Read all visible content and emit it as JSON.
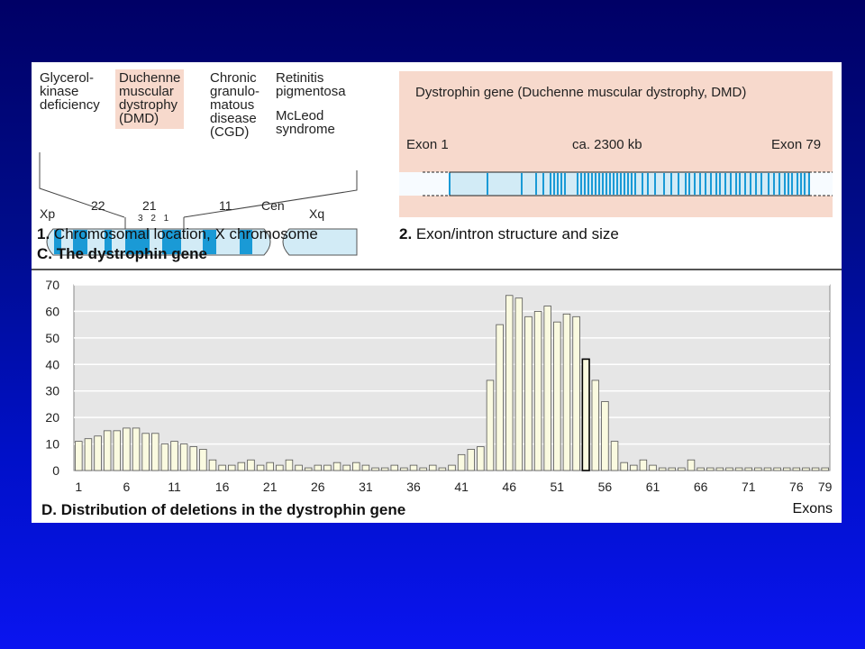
{
  "chromosome": {
    "regions": [
      "Glycerol-\nkinase\ndeficiency",
      "Duchenne\nmuscular\ndystrophy\n(DMD)",
      "Chronic\ngranulo-\nmatous\ndisease\n(CGD)",
      "Retinitis\npigmentosa",
      "McLeod\nsyndrome"
    ],
    "band_labels": [
      "Xp",
      "22",
      "21",
      "11",
      "Cen",
      "Xq"
    ],
    "sub_bands": "3 2 1",
    "panel_label_number": "1.",
    "panel_label_text": "Chromosomal location, X chromosome",
    "section_label_letter": "C.",
    "section_label_text": "The dystrophin gene"
  },
  "gene": {
    "title": "Dystrophin gene   (Duchenne muscular dystrophy, DMD)",
    "exon_start": "Exon 1",
    "size": "ca. 2300 kb",
    "exon_end": "Exon 79",
    "panel_label_number": "2.",
    "panel_label_text": "Exon/intron structure and size"
  },
  "colors": {
    "exon_blue": "#1a9ad6",
    "light_blue": "#d2ebf6",
    "peach": "#f7d9cc",
    "bar_fill": "#fafae0",
    "plot_bg": "#e6e6e6"
  },
  "chart_data": {
    "type": "bar",
    "title": "D. Distribution of deletions in the dystrophin gene",
    "xlabel": "Exons",
    "ylabel": "",
    "ylim": [
      0,
      70
    ],
    "yticks": [
      0,
      10,
      20,
      30,
      40,
      50,
      60,
      70
    ],
    "xticks": [
      1,
      6,
      11,
      16,
      21,
      26,
      31,
      36,
      41,
      46,
      51,
      56,
      61,
      66,
      71,
      76,
      79
    ],
    "categories": [
      1,
      2,
      3,
      4,
      5,
      6,
      7,
      8,
      9,
      10,
      11,
      12,
      13,
      14,
      15,
      16,
      17,
      18,
      19,
      20,
      21,
      22,
      23,
      24,
      25,
      26,
      27,
      28,
      29,
      30,
      31,
      32,
      33,
      34,
      35,
      36,
      37,
      38,
      39,
      40,
      41,
      42,
      43,
      44,
      45,
      46,
      47,
      48,
      49,
      50,
      51,
      52,
      53,
      54,
      55,
      56,
      57,
      58,
      59,
      60,
      61,
      62,
      63,
      64,
      65,
      66,
      67,
      68,
      69,
      70,
      71,
      72,
      73,
      74,
      75,
      76,
      77,
      78,
      79
    ],
    "values": [
      11,
      12,
      13,
      15,
      15,
      16,
      16,
      14,
      14,
      10,
      11,
      10,
      9,
      8,
      4,
      2,
      2,
      3,
      4,
      2,
      3,
      2,
      4,
      2,
      1,
      2,
      2,
      3,
      2,
      3,
      2,
      1,
      1,
      2,
      1,
      2,
      1,
      2,
      1,
      2,
      6,
      8,
      9,
      34,
      55,
      66,
      65,
      58,
      60,
      62,
      56,
      59,
      58,
      42,
      34,
      26,
      11,
      3,
      2,
      4,
      2,
      1,
      1,
      1,
      4,
      1,
      1,
      1,
      1,
      1,
      1,
      1,
      1,
      1,
      1,
      1,
      1,
      1,
      1
    ],
    "highlight_exon": 54
  }
}
